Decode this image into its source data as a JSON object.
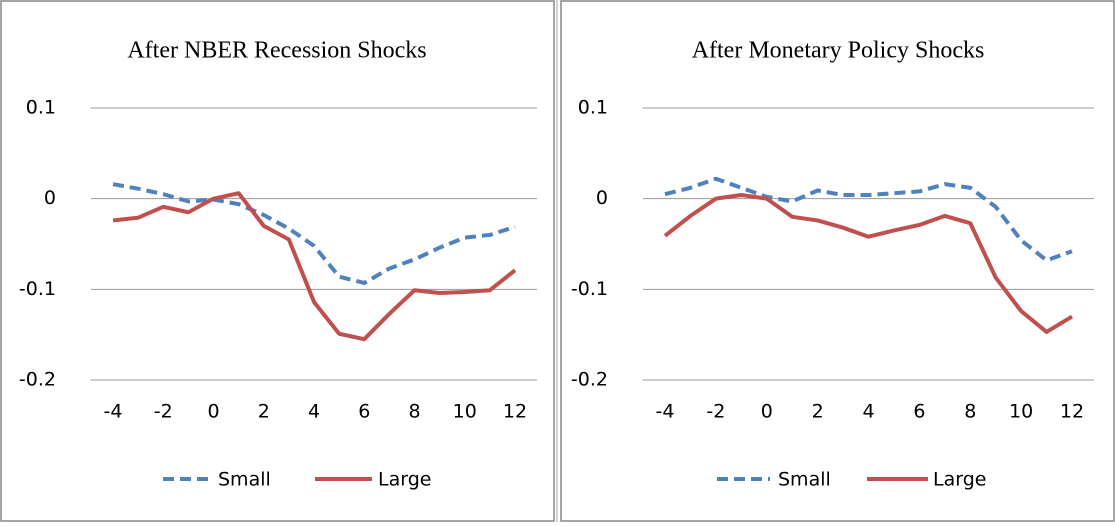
{
  "chart_data": [
    {
      "type": "line",
      "title": "After NBER Recession Shocks",
      "x": [
        -4,
        -3,
        -2,
        -1,
        0,
        1,
        2,
        3,
        4,
        5,
        6,
        7,
        8,
        9,
        10,
        11,
        12
      ],
      "series": [
        {
          "name": "Small",
          "color": "#4f81bd",
          "dash": true,
          "values": [
            0.016,
            0.011,
            0.005,
            -0.003,
            -0.001,
            -0.006,
            -0.018,
            -0.033,
            -0.052,
            -0.086,
            -0.093,
            -0.077,
            -0.067,
            -0.054,
            -0.043,
            -0.04,
            -0.031
          ]
        },
        {
          "name": "Large",
          "color": "#c0504d",
          "dash": false,
          "values": [
            -0.024,
            -0.021,
            -0.009,
            -0.015,
            0.0,
            0.006,
            -0.03,
            -0.045,
            -0.114,
            -0.149,
            -0.155,
            -0.127,
            -0.101,
            -0.104,
            -0.103,
            -0.101,
            -0.079
          ]
        }
      ],
      "xlim": [
        -4,
        12
      ],
      "xticks": [
        -4,
        -2,
        0,
        2,
        4,
        6,
        8,
        10,
        12
      ],
      "ylim": [
        -0.2,
        0.1
      ],
      "yticks": [
        0.1,
        0,
        -0.1,
        -0.2
      ],
      "grid": true,
      "legend": "bottom"
    },
    {
      "type": "line",
      "title": "After Monetary Policy Shocks",
      "x": [
        -4,
        -3,
        -2,
        -1,
        0,
        1,
        2,
        3,
        4,
        5,
        6,
        7,
        8,
        9,
        10,
        11,
        12
      ],
      "series": [
        {
          "name": "Small",
          "color": "#4f81bd",
          "dash": true,
          "values": [
            0.005,
            0.012,
            0.022,
            0.012,
            0.002,
            -0.003,
            0.009,
            0.004,
            0.004,
            0.006,
            0.008,
            0.016,
            0.012,
            -0.009,
            -0.046,
            -0.068,
            -0.058
          ]
        },
        {
          "name": "Large",
          "color": "#c0504d",
          "dash": false,
          "values": [
            -0.041,
            -0.019,
            0.0,
            0.004,
            0.0,
            -0.02,
            -0.024,
            -0.032,
            -0.042,
            -0.035,
            -0.029,
            -0.019,
            -0.027,
            -0.087,
            -0.124,
            -0.147,
            -0.13
          ]
        }
      ],
      "xlim": [
        -4,
        12
      ],
      "xticks": [
        -4,
        -2,
        0,
        2,
        4,
        6,
        8,
        10,
        12
      ],
      "ylim": [
        -0.2,
        0.1
      ],
      "yticks": [
        0.1,
        0,
        -0.1,
        -0.2
      ],
      "grid": true,
      "legend": "bottom"
    }
  ]
}
